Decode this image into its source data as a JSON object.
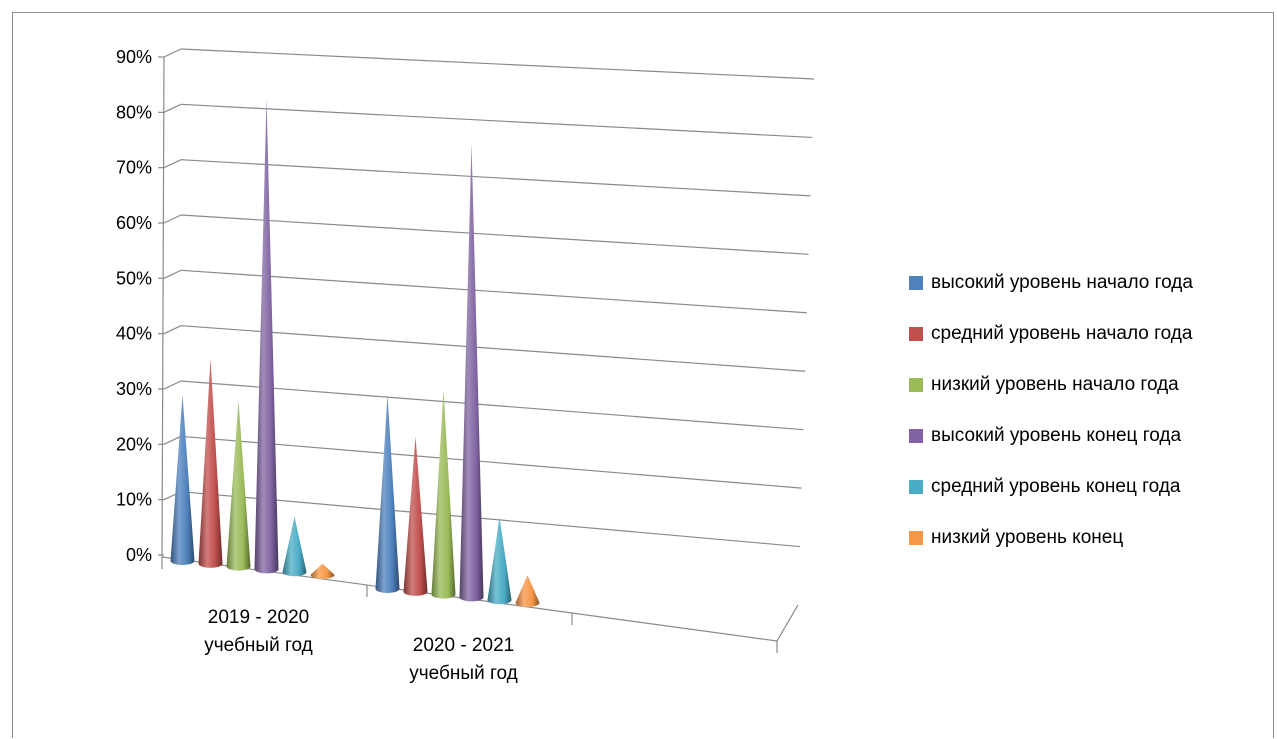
{
  "chart_data": {
    "type": "bar",
    "bar_shape": "cone",
    "projection": "3d",
    "categories": [
      "2019 - 2020 учебный год",
      "2020 - 2021 учебный год"
    ],
    "category_lines": [
      [
        "2019 - 2020",
        "учебный год"
      ],
      [
        "2020 - 2021",
        "учебный год"
      ]
    ],
    "series": [
      {
        "name": "высокий уровень начало года",
        "color": "#4F81BD",
        "values": [
          0.3,
          0.35
        ]
      },
      {
        "name": "средний уровень начало года",
        "color": "#C0504D",
        "values": [
          0.37,
          0.28
        ]
      },
      {
        "name": "низкий уровень начало года",
        "color": "#9BBB59",
        "values": [
          0.3,
          0.37
        ]
      },
      {
        "name": "высокий уровень конец года",
        "color": "#8064A2",
        "values": [
          0.85,
          0.82
        ]
      },
      {
        "name": "средний уровень конец года",
        "color": "#4BACC6",
        "values": [
          0.1,
          0.15
        ]
      },
      {
        "name": "низкий уровень конец",
        "color": "#F79646",
        "values": [
          0.02,
          0.05
        ]
      }
    ],
    "y_ticks": [
      "0%",
      "10%",
      "20%",
      "30%",
      "40%",
      "50%",
      "60%",
      "70%",
      "80%",
      "90%"
    ],
    "ylim": [
      0,
      0.9
    ],
    "grid": true,
    "legend_position": "right",
    "title": "",
    "xlabel": "",
    "ylabel": ""
  }
}
